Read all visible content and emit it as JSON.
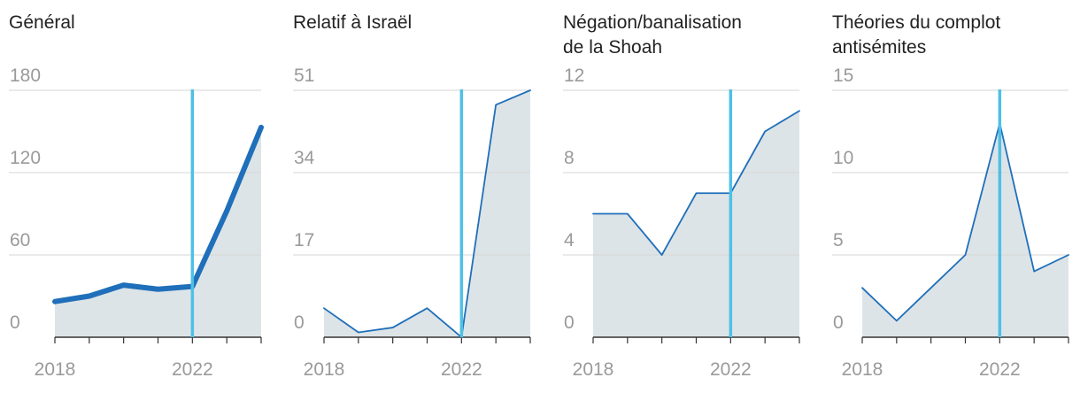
{
  "colors": {
    "line": "#1f6fba",
    "area": "#dde4e7",
    "marker": "#4ec0e6",
    "grid": "#d6d6d6",
    "axis": "#333333",
    "tick_label": "#9a9a9a",
    "title": "#222222"
  },
  "chart_data": [
    {
      "type": "area",
      "title": "Général",
      "x": [
        2018,
        2019,
        2020,
        2021,
        2022,
        2023,
        2024
      ],
      "values": [
        26,
        30,
        38,
        35,
        37,
        92,
        153
      ],
      "ylim": [
        0,
        180
      ],
      "yticks": [
        0,
        60,
        120,
        180
      ],
      "xtick_labels": [
        "2018",
        "2022"
      ],
      "xlim": [
        2018,
        2024
      ],
      "marker_x": 2022,
      "line_style": "thick"
    },
    {
      "type": "area",
      "title": "Relatif à Israël",
      "x": [
        2018,
        2019,
        2020,
        2021,
        2022,
        2023,
        2024
      ],
      "values": [
        6,
        1,
        2,
        6,
        0,
        48,
        51
      ],
      "ylim": [
        0,
        51
      ],
      "yticks": [
        0,
        17,
        34,
        51
      ],
      "xtick_labels": [
        "2018",
        "2022"
      ],
      "xlim": [
        2018,
        2024
      ],
      "marker_x": 2022,
      "line_style": "thin"
    },
    {
      "type": "area",
      "title": "Négation/banalisation de la Shoah",
      "title_lines": [
        "Négation/banalisation",
        "de la Shoah"
      ],
      "x": [
        2018,
        2019,
        2020,
        2021,
        2022,
        2023,
        2024
      ],
      "values": [
        6,
        6,
        4,
        7,
        7,
        10,
        11
      ],
      "ylim": [
        0,
        12
      ],
      "yticks": [
        0,
        4,
        8,
        12
      ],
      "xtick_labels": [
        "2018",
        "2022"
      ],
      "xlim": [
        2018,
        2024
      ],
      "marker_x": 2022,
      "line_style": "thin"
    },
    {
      "type": "area",
      "title": "Théories du complot antisémites",
      "title_lines": [
        "Théories du complot",
        "antisémites"
      ],
      "x": [
        2018,
        2019,
        2020,
        2021,
        2022,
        2023,
        2024
      ],
      "values": [
        3,
        1,
        3,
        5,
        13,
        4,
        5
      ],
      "ylim": [
        0,
        15
      ],
      "yticks": [
        0,
        5,
        10,
        15
      ],
      "xtick_labels": [
        "2018",
        "2022"
      ],
      "xlim": [
        2018,
        2024
      ],
      "marker_x": 2022,
      "line_style": "thin"
    }
  ]
}
